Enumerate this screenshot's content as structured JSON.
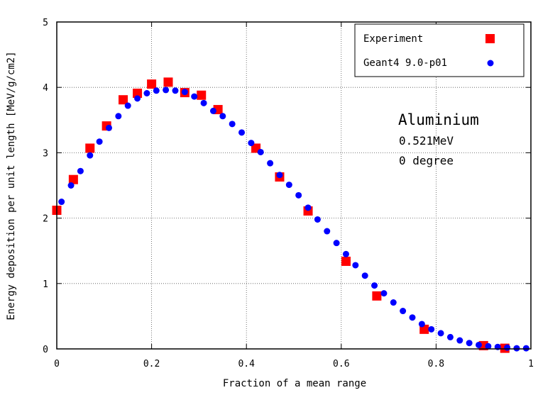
{
  "chart_data": {
    "type": "scatter",
    "xlabel": "Fraction of a mean range",
    "ylabel": "Energy deposition per unit length [MeV/g/cm2]",
    "xlim": [
      0,
      1
    ],
    "ylim": [
      0,
      5
    ],
    "x_ticks": [
      "0",
      "0.2",
      "0.4",
      "0.6",
      "0.8",
      "1"
    ],
    "y_ticks": [
      "0",
      "1",
      "2",
      "3",
      "4",
      "5"
    ],
    "grid": true,
    "legend_position": "top-right",
    "annotations": [
      "Aluminium",
      "0.521MeV",
      "0 degree"
    ],
    "series": [
      {
        "name": "Experiment",
        "marker": "square",
        "color": "#ff0000",
        "points": [
          [
            0.0,
            2.12
          ],
          [
            0.035,
            2.59
          ],
          [
            0.07,
            3.07
          ],
          [
            0.105,
            3.41
          ],
          [
            0.14,
            3.81
          ],
          [
            0.17,
            3.91
          ],
          [
            0.2,
            4.05
          ],
          [
            0.235,
            4.08
          ],
          [
            0.27,
            3.92
          ],
          [
            0.305,
            3.88
          ],
          [
            0.34,
            3.66
          ],
          [
            0.42,
            3.07
          ],
          [
            0.47,
            2.63
          ],
          [
            0.53,
            2.11
          ],
          [
            0.61,
            1.34
          ],
          [
            0.675,
            0.81
          ],
          [
            0.775,
            0.3
          ],
          [
            0.9,
            0.05
          ],
          [
            0.945,
            0.01
          ]
        ]
      },
      {
        "name": "Geant4 9.0-p01",
        "marker": "circle",
        "color": "#0000ff",
        "points": [
          [
            0.01,
            2.25
          ],
          [
            0.03,
            2.5
          ],
          [
            0.05,
            2.72
          ],
          [
            0.07,
            2.96
          ],
          [
            0.09,
            3.17
          ],
          [
            0.11,
            3.38
          ],
          [
            0.13,
            3.56
          ],
          [
            0.15,
            3.72
          ],
          [
            0.17,
            3.83
          ],
          [
            0.19,
            3.91
          ],
          [
            0.21,
            3.95
          ],
          [
            0.23,
            3.96
          ],
          [
            0.25,
            3.95
          ],
          [
            0.27,
            3.93
          ],
          [
            0.29,
            3.86
          ],
          [
            0.31,
            3.76
          ],
          [
            0.33,
            3.64
          ],
          [
            0.35,
            3.56
          ],
          [
            0.37,
            3.44
          ],
          [
            0.39,
            3.31
          ],
          [
            0.41,
            3.15
          ],
          [
            0.43,
            3.01
          ],
          [
            0.45,
            2.84
          ],
          [
            0.47,
            2.66
          ],
          [
            0.49,
            2.51
          ],
          [
            0.51,
            2.35
          ],
          [
            0.53,
            2.16
          ],
          [
            0.55,
            1.98
          ],
          [
            0.57,
            1.8
          ],
          [
            0.59,
            1.62
          ],
          [
            0.61,
            1.45
          ],
          [
            0.63,
            1.28
          ],
          [
            0.65,
            1.12
          ],
          [
            0.67,
            0.97
          ],
          [
            0.69,
            0.85
          ],
          [
            0.71,
            0.71
          ],
          [
            0.73,
            0.58
          ],
          [
            0.75,
            0.48
          ],
          [
            0.77,
            0.38
          ],
          [
            0.79,
            0.3
          ],
          [
            0.81,
            0.24
          ],
          [
            0.83,
            0.18
          ],
          [
            0.85,
            0.13
          ],
          [
            0.87,
            0.09
          ],
          [
            0.89,
            0.06
          ],
          [
            0.91,
            0.04
          ],
          [
            0.93,
            0.03
          ],
          [
            0.95,
            0.02
          ],
          [
            0.97,
            0.01
          ],
          [
            0.99,
            0.01
          ]
        ]
      }
    ]
  }
}
